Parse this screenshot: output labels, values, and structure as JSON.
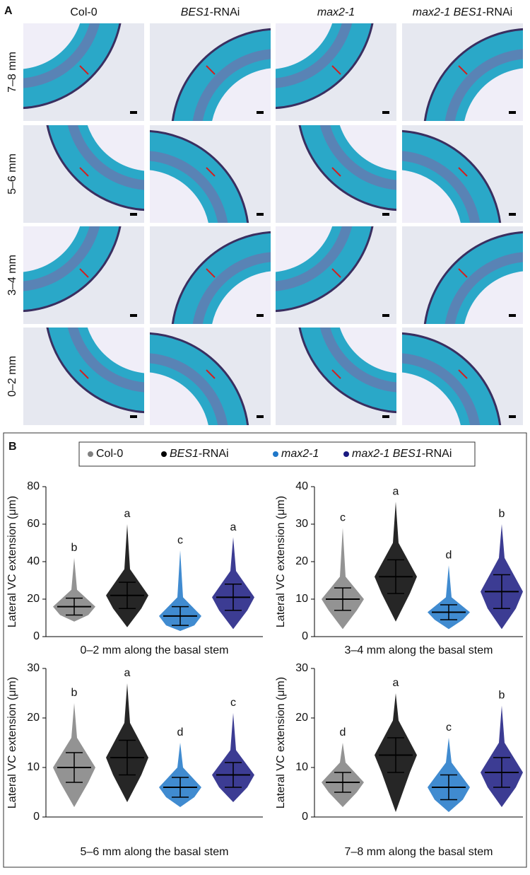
{
  "panel_a": {
    "label": "A",
    "columns": [
      [
        {
          "text": "Col-0",
          "italic": false
        }
      ],
      [
        {
          "text": "BES1",
          "italic": true
        },
        {
          "text": "-RNAi",
          "italic": false
        }
      ],
      [
        {
          "text": "max2-1",
          "italic": true
        }
      ],
      [
        {
          "text": "max2-1 BES1",
          "italic": true
        },
        {
          "text": "-RNAi",
          "italic": false
        }
      ]
    ],
    "rows": [
      "7–8 mm",
      "5–6 mm",
      "3–4 mm",
      "0–2 mm"
    ]
  },
  "panel_b_label": "B",
  "legend": [
    {
      "color": "#808080",
      "parts": [
        {
          "text": "Col-0",
          "italic": false
        }
      ]
    },
    {
      "color": "#000000",
      "parts": [
        {
          "text": "BES1",
          "italic": true
        },
        {
          "text": "-RNAi",
          "italic": false
        }
      ]
    },
    {
      "color": "#1f77c8",
      "parts": [
        {
          "text": "max2-1",
          "italic": true
        }
      ]
    },
    {
      "color": "#1a1a80",
      "parts": [
        {
          "text": "max2-1 BES1",
          "italic": true
        },
        {
          "text": "-RNAi",
          "italic": false
        }
      ]
    }
  ],
  "chart_data": [
    {
      "type": "beeswarm",
      "x_label": "0–2 mm along the basal stem",
      "y_label": "Lateral VC extension (μm)",
      "ylim": [
        0,
        80
      ],
      "yticks": [
        0,
        20,
        40,
        60,
        80
      ],
      "groups": [
        {
          "mean": 16,
          "sd": 4.5,
          "min": 8,
          "max": 42,
          "letter": "b"
        },
        {
          "mean": 22,
          "sd": 7,
          "min": 5,
          "max": 60,
          "letter": "a"
        },
        {
          "mean": 11,
          "sd": 5,
          "min": 3,
          "max": 46,
          "letter": "c"
        },
        {
          "mean": 21,
          "sd": 7,
          "min": 4,
          "max": 53,
          "letter": "a"
        }
      ]
    },
    {
      "type": "beeswarm",
      "x_label": "3–4 mm along the basal stem",
      "y_label": "Lateral VC extension (μm)",
      "ylim": [
        0,
        40
      ],
      "yticks": [
        0,
        10,
        20,
        30,
        40
      ],
      "groups": [
        {
          "mean": 10,
          "sd": 3,
          "min": 2,
          "max": 29,
          "letter": "c"
        },
        {
          "mean": 16,
          "sd": 4.5,
          "min": 4,
          "max": 36,
          "letter": "a"
        },
        {
          "mean": 6.5,
          "sd": 2,
          "min": 2,
          "max": 19,
          "letter": "d"
        },
        {
          "mean": 12,
          "sd": 4.5,
          "min": 2,
          "max": 30,
          "letter": "b"
        }
      ]
    },
    {
      "type": "beeswarm",
      "x_label": "5–6 mm along the basal stem",
      "y_label": "Lateral VC extension (μm)",
      "ylim": [
        0,
        30
      ],
      "yticks": [
        0,
        10,
        20,
        30
      ],
      "groups": [
        {
          "mean": 10,
          "sd": 3,
          "min": 2,
          "max": 23,
          "letter": "b"
        },
        {
          "mean": 12,
          "sd": 3.5,
          "min": 3,
          "max": 27,
          "letter": "a"
        },
        {
          "mean": 6,
          "sd": 2,
          "min": 2,
          "max": 15,
          "letter": "d"
        },
        {
          "mean": 8.5,
          "sd": 2.5,
          "min": 3,
          "max": 21,
          "letter": "c"
        }
      ]
    },
    {
      "type": "beeswarm",
      "x_label": "7–8 mm along the basal stem",
      "y_label": "Lateral VC extension (μm)",
      "ylim": [
        0,
        30
      ],
      "yticks": [
        0,
        10,
        20,
        30
      ],
      "groups": [
        {
          "mean": 7,
          "sd": 2,
          "min": 2,
          "max": 15,
          "letter": "d"
        },
        {
          "mean": 12.5,
          "sd": 3.5,
          "min": 1,
          "max": 25,
          "letter": "a"
        },
        {
          "mean": 6,
          "sd": 2.5,
          "min": 1,
          "max": 16,
          "letter": "c"
        },
        {
          "mean": 9,
          "sd": 3,
          "min": 2,
          "max": 22.5,
          "letter": "b"
        }
      ]
    }
  ]
}
